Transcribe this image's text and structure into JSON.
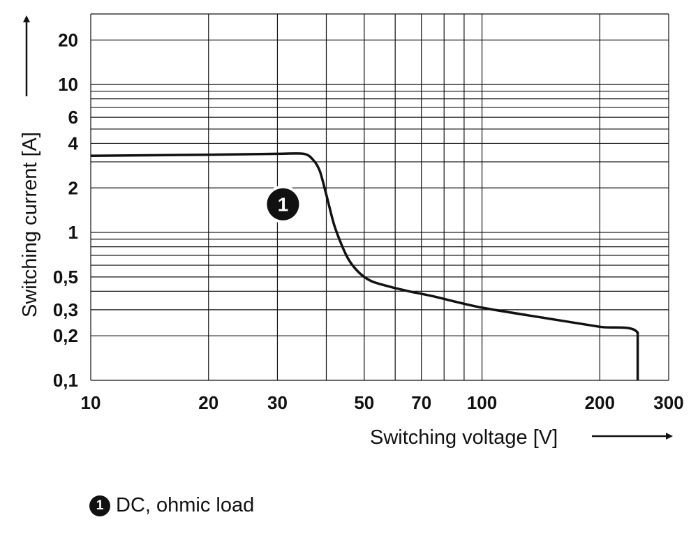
{
  "chart_data": {
    "type": "line",
    "scale": {
      "x": "log",
      "y": "log"
    },
    "xlim": [
      10,
      300
    ],
    "ylim": [
      0.1,
      30
    ],
    "xlabel": "Switching voltage [V]",
    "ylabel": "Switching current [A]",
    "x_ticks": [
      {
        "value": 10,
        "label": "10"
      },
      {
        "value": 20,
        "label": "20"
      },
      {
        "value": 30,
        "label": "30"
      },
      {
        "value": 50,
        "label": "50"
      },
      {
        "value": 70,
        "label": "70"
      },
      {
        "value": 100,
        "label": "100"
      },
      {
        "value": 200,
        "label": "200"
      },
      {
        "value": 300,
        "label": "300"
      }
    ],
    "y_ticks": [
      {
        "value": 0.1,
        "label": "0,1"
      },
      {
        "value": 0.2,
        "label": "0,2"
      },
      {
        "value": 0.3,
        "label": "0,3"
      },
      {
        "value": 0.5,
        "label": "0,5"
      },
      {
        "value": 1,
        "label": "1"
      },
      {
        "value": 2,
        "label": "2"
      },
      {
        "value": 4,
        "label": "4"
      },
      {
        "value": 6,
        "label": "6"
      },
      {
        "value": 10,
        "label": "10"
      },
      {
        "value": 20,
        "label": "20"
      }
    ],
    "x_grid": [
      10,
      20,
      30,
      40,
      50,
      60,
      70,
      80,
      90,
      100,
      200,
      300
    ],
    "y_grid": [
      0.1,
      0.2,
      0.3,
      0.4,
      0.5,
      0.6,
      0.7,
      0.8,
      0.9,
      1,
      2,
      3,
      4,
      5,
      6,
      7,
      8,
      9,
      10,
      20,
      30
    ],
    "series": [
      {
        "name": "DC, ohmic load",
        "marker": "1",
        "x": [
          10,
          20,
          30,
          35,
          37,
          38.5,
          40,
          42,
          45,
          48,
          52,
          58,
          65,
          75,
          100,
          150,
          200,
          250,
          250
        ],
        "y": [
          3.3,
          3.35,
          3.4,
          3.4,
          3.1,
          2.6,
          1.8,
          1.1,
          0.7,
          0.55,
          0.47,
          0.43,
          0.4,
          0.37,
          0.31,
          0.26,
          0.23,
          0.21,
          0.1
        ]
      }
    ],
    "annotations": [
      {
        "label": "1",
        "x": 31,
        "y": 1.55
      }
    ],
    "legend": {
      "position": "bottom-left",
      "entries": [
        {
          "marker": "1",
          "text": "DC, ohmic load"
        }
      ]
    }
  }
}
